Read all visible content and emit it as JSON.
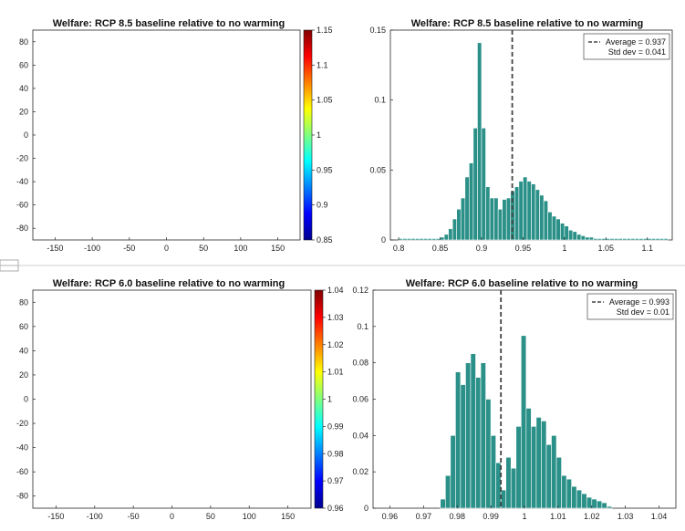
{
  "chart_data": [
    {
      "id": "map_85",
      "type": "heatmap",
      "title": "Welfare: RCP 8.5 baseline relative to no warming",
      "x_ticks": [
        -150,
        -100,
        -50,
        0,
        50,
        100,
        150
      ],
      "y_ticks": [
        80,
        60,
        40,
        20,
        0,
        -20,
        -40,
        -60,
        -80
      ],
      "xlim": [
        -180,
        180
      ],
      "ylim": [
        -90,
        90
      ],
      "colorbar_ticks": [
        "1.15",
        "1.1",
        "1.05",
        "1",
        "0.95",
        "0.9",
        "0.85"
      ],
      "colorbar_range": [
        0.85,
        1.15
      ],
      "colormap": "jet"
    },
    {
      "id": "hist_85",
      "type": "bar",
      "title": "Welfare: RCP 8.5 baseline relative to no warming",
      "x_ticks": [
        "0.8",
        "0.85",
        "0.9",
        "0.95",
        "1",
        "1.05",
        "1.1"
      ],
      "y_ticks": [
        "0",
        "0.05",
        "0.1",
        "0.15"
      ],
      "xlim": [
        0.79,
        1.13
      ],
      "ylim": [
        0,
        0.15
      ],
      "bin_start": 0.8,
      "bin_width": 0.005,
      "values": [
        0.001,
        0.001,
        0.001,
        0.001,
        0.001,
        0.001,
        0.001,
        0.001,
        0.001,
        0.001,
        0.002,
        0.004,
        0.008,
        0.015,
        0.022,
        0.03,
        0.045,
        0.055,
        0.08,
        0.141,
        0.08,
        0.038,
        0.03,
        0.03,
        0.022,
        0.029,
        0.03,
        0.035,
        0.038,
        0.042,
        0.045,
        0.042,
        0.04,
        0.036,
        0.032,
        0.028,
        0.02,
        0.017,
        0.015,
        0.012,
        0.01,
        0.007,
        0.006,
        0.004,
        0.003,
        0.002,
        0.002,
        0.001,
        0.001,
        0.001,
        0.001,
        0.001,
        0.001,
        0.001,
        0.001,
        0.001,
        0.001,
        0.001,
        0.001,
        0.001,
        0.001,
        0.001,
        0.001,
        0.001,
        0.001
      ],
      "bar_color": "#2a9088",
      "average_line": 0.937,
      "legend": [
        "Average = 0.937",
        "Std dev = 0.041"
      ],
      "legend_position": "top-right"
    },
    {
      "id": "map_60",
      "type": "heatmap",
      "title": "Welfare: RCP 6.0 baseline relative to no warming",
      "x_ticks": [
        -150,
        -100,
        -50,
        0,
        50,
        100,
        150
      ],
      "y_ticks": [
        80,
        60,
        40,
        20,
        0,
        -20,
        -40,
        -60,
        -80
      ],
      "xlim": [
        -180,
        180
      ],
      "ylim": [
        -90,
        90
      ],
      "colorbar_ticks": [
        "1.04",
        "1.03",
        "1.02",
        "1.01",
        "1",
        "0.99",
        "0.98",
        "0.97",
        "0.96"
      ],
      "colorbar_range": [
        0.96,
        1.04
      ],
      "colormap": "jet"
    },
    {
      "id": "hist_60",
      "type": "bar",
      "title": "Welfare: RCP 6.0 baseline relative to no warming",
      "x_ticks": [
        "0.96",
        "0.97",
        "0.98",
        "0.99",
        "1",
        "1.01",
        "1.02",
        "1.03",
        "1.04"
      ],
      "y_ticks": [
        "0",
        "0.02",
        "0.04",
        "0.06",
        "0.08",
        "0.1",
        "0.12"
      ],
      "xlim": [
        0.955,
        1.045
      ],
      "ylim": [
        0,
        0.12
      ],
      "bin_start": 0.975,
      "bin_width": 0.0015,
      "values": [
        0.005,
        0.018,
        0.04,
        0.075,
        0.068,
        0.08,
        0.085,
        0.072,
        0.08,
        0.06,
        0.04,
        0.025,
        0.01,
        0.028,
        0.022,
        0.045,
        0.095,
        0.055,
        0.045,
        0.05,
        0.048,
        0.035,
        0.04,
        0.028,
        0.018,
        0.016,
        0.012,
        0.01,
        0.008,
        0.006,
        0.005,
        0.004,
        0.003,
        0.001
      ],
      "bar_color": "#2a9088",
      "average_line": 0.993,
      "legend": [
        "Average = 0.993",
        "Std dev = 0.01"
      ],
      "legend_position": "top-right"
    }
  ]
}
